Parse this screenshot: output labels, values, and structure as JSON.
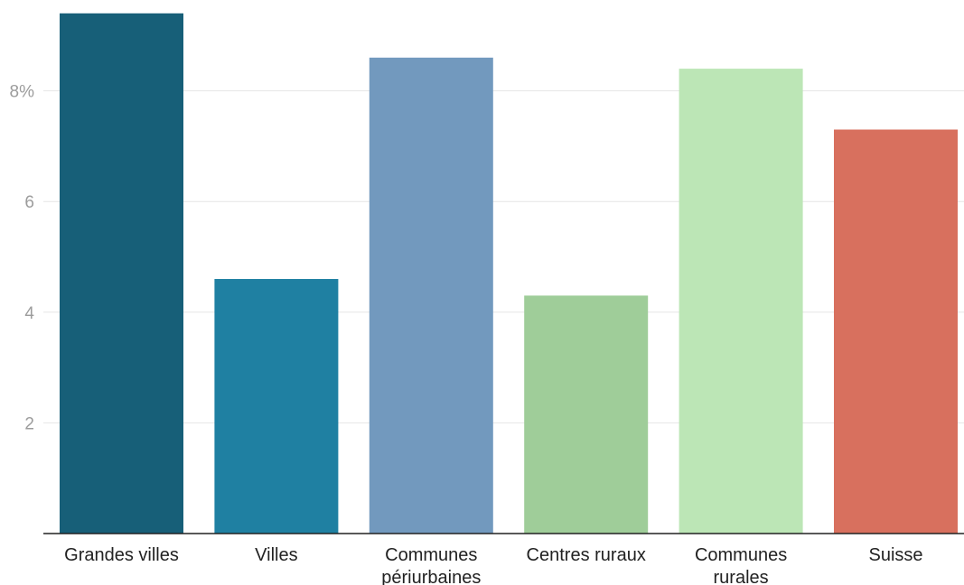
{
  "chart_data": {
    "type": "bar",
    "categories": [
      [
        "Grandes villes"
      ],
      [
        "Villes"
      ],
      [
        "Communes",
        "périurbaines"
      ],
      [
        "Centres ruraux"
      ],
      [
        "Communes",
        "rurales"
      ],
      [
        "Suisse"
      ]
    ],
    "values": [
      9.4,
      4.6,
      8.6,
      4.3,
      8.4,
      7.3
    ],
    "colors": [
      "#175f78",
      "#1f80a2",
      "#7299be",
      "#9fcd99",
      "#bce6b6",
      "#d8705e"
    ],
    "yticks": [
      {
        "value": 2,
        "label": "2"
      },
      {
        "value": 4,
        "label": "4"
      },
      {
        "value": 6,
        "label": "6"
      },
      {
        "value": 8,
        "label": "8%"
      }
    ],
    "ylim": [
      0,
      9.5
    ],
    "grid": true,
    "title": "",
    "xlabel": "",
    "ylabel": ""
  }
}
